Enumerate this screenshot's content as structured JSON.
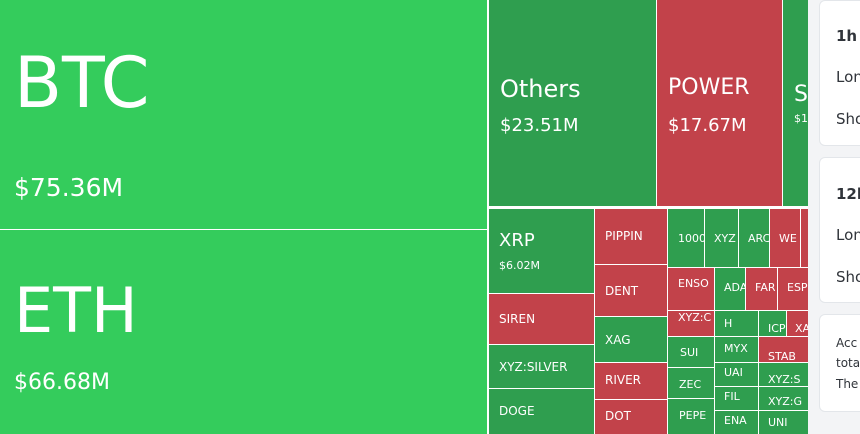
{
  "chart_data": {
    "type": "treemap",
    "colors": {
      "up": "#34cc5c",
      "up_dark": "#2f9e4f",
      "down": "#c2424a"
    },
    "tiles": [
      {
        "label": "BTC",
        "value": "$75.36M",
        "change": "up"
      },
      {
        "label": "ETH",
        "value": "$66.68M",
        "change": "up"
      },
      {
        "label": "Others",
        "value": "$23.51M",
        "change": "up"
      },
      {
        "label": "POWER",
        "value": "$17.67M",
        "change": "down"
      },
      {
        "label": "S",
        "value": "$1",
        "change": "up"
      },
      {
        "label": "XRP",
        "value": "$6.02M",
        "change": "up"
      },
      {
        "label": "SIREN",
        "change": "down"
      },
      {
        "label": "XYZ:SILVER",
        "change": "up"
      },
      {
        "label": "DOGE",
        "change": "up"
      },
      {
        "label": "PIPPIN",
        "change": "down"
      },
      {
        "label": "DENT",
        "change": "down"
      },
      {
        "label": "XAG",
        "change": "up"
      },
      {
        "label": "RIVER",
        "change": "down"
      },
      {
        "label": "DOT",
        "change": "down"
      },
      {
        "label": "1000",
        "change": "up"
      },
      {
        "label": "XYZ",
        "change": "up"
      },
      {
        "label": "ARC",
        "change": "up"
      },
      {
        "label": "WE",
        "change": "down"
      },
      {
        "label": "",
        "change": "down"
      },
      {
        "label": "ENSO",
        "change": "down"
      },
      {
        "label": "ADA",
        "change": "up"
      },
      {
        "label": "FAR",
        "change": "down"
      },
      {
        "label": "ESP",
        "change": "down"
      },
      {
        "label": "XYZ:C",
        "change": "down"
      },
      {
        "label": "H",
        "change": "up"
      },
      {
        "label": "ICP",
        "change": "up"
      },
      {
        "label": "XA",
        "change": "down"
      },
      {
        "label": "SUI",
        "change": "up"
      },
      {
        "label": "MYX",
        "change": "up"
      },
      {
        "label": "STAB",
        "change": "down"
      },
      {
        "label": "UAI",
        "change": "up"
      },
      {
        "label": "XYZ:S",
        "change": "up"
      },
      {
        "label": "ZEC",
        "change": "up"
      },
      {
        "label": "FIL",
        "change": "up"
      },
      {
        "label": "XYZ:G",
        "change": "up"
      },
      {
        "label": "PEPE",
        "change": "up"
      },
      {
        "label": "ENA",
        "change": "up"
      },
      {
        "label": "UNI",
        "change": "up"
      }
    ]
  },
  "side_panel": {
    "cards": [
      {
        "title": "1h",
        "lines": [
          "Lon",
          "Sho"
        ]
      },
      {
        "title": "12h",
        "lines": [
          "Lon",
          "Sho"
        ]
      },
      {
        "lines": [
          "Acc",
          "tota",
          "The"
        ]
      }
    ]
  }
}
